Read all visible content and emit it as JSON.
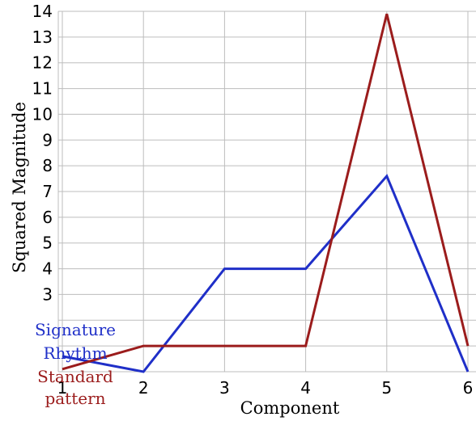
{
  "chart_data": {
    "type": "line",
    "title": "",
    "xlabel": "Component",
    "ylabel": "Squared Magnitude",
    "x": [
      1,
      2,
      3,
      4,
      5,
      6
    ],
    "xlim": [
      0.95,
      6.1
    ],
    "ylim": [
      0,
      14
    ],
    "x_ticks": [
      "1",
      "2",
      "3",
      "4",
      "5",
      "6"
    ],
    "y_ticks": [
      "3",
      "4",
      "5",
      "6",
      "7",
      "8",
      "9",
      "10",
      "11",
      "12",
      "13",
      "14"
    ],
    "y_tick_values": [
      3,
      4,
      5,
      6,
      7,
      8,
      9,
      10,
      11,
      12,
      13,
      14
    ],
    "grid": true,
    "legend_position": "bottom-left",
    "series": [
      {
        "name": "Signature Rhythm",
        "color": "#1f2fc8",
        "values": [
          0.6,
          0,
          4,
          4,
          7.6,
          0
        ]
      },
      {
        "name": "Standard pattern",
        "color": "#9b1c1c",
        "values": [
          0.1,
          1,
          1,
          1,
          13.9,
          1
        ]
      }
    ],
    "legend": [
      {
        "lines": [
          "Signature",
          "Rhythm"
        ],
        "color": "#1f2fc8"
      },
      {
        "lines": [
          "Standard",
          "pattern"
        ],
        "color": "#9b1c1c"
      }
    ]
  }
}
